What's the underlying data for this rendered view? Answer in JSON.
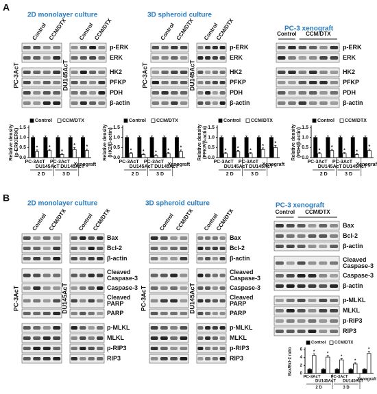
{
  "panel_a": {
    "label": "A",
    "sections": [
      {
        "title": "2D monolayer culture",
        "columns": [
          "Control",
          "CCM/DTX"
        ],
        "cell_lines": [
          "PC-3AcT",
          "DU145AcT"
        ],
        "blocks": [
          [
            "p-ERK",
            "ERK"
          ],
          [
            "HK2",
            "PFKP",
            "PDH",
            "β-actin"
          ]
        ]
      },
      {
        "title": "3D spheroid culture",
        "columns": [
          "Control",
          "CCM/DTX"
        ],
        "cell_lines": [
          "PC-3AcT",
          "DU145AcT"
        ],
        "blocks": [
          [
            "p-ERK",
            "ERK"
          ],
          [
            "HK2",
            "PFKP",
            "PDH",
            "β-actin"
          ]
        ]
      },
      {
        "title": "PC-3 xenograft",
        "columns": [
          "Control",
          "CCM/DTX"
        ],
        "blocks": [
          [
            "p-ERK",
            "ERK"
          ],
          [
            "HK2",
            "PFKP",
            "PDH",
            "β-actin"
          ]
        ]
      }
    ]
  },
  "panel_b": {
    "label": "B",
    "sections": [
      {
        "title": "2D monolayer culture",
        "columns": [
          "Control",
          "CCM/DTX"
        ],
        "cell_lines": [
          "PC-3AcT",
          "DU145AcT"
        ],
        "blocks": [
          [
            "Bax",
            "Bcl-2",
            "β-actin"
          ],
          [
            [
              "Cleaved",
              "Caspase-3"
            ],
            "Caspase-3",
            [
              "Cleaved",
              "PARP"
            ],
            "PARP"
          ],
          [
            "p-MLKL",
            "MLKL",
            "p-RIP3",
            "RIP3"
          ]
        ]
      },
      {
        "title": "3D spheroid culture",
        "columns": [
          "Control",
          "CCM/DTX"
        ],
        "cell_lines": [
          "PC-3AcT",
          "DU145AcT"
        ],
        "blocks": [
          [
            "Bax",
            "Bcl-2",
            "β-actin"
          ],
          [
            [
              "Cleaved",
              "Caspase-3"
            ],
            "Caspase-3",
            [
              "Cleaved",
              "PARP"
            ],
            "PARP"
          ],
          [
            "p-MLKL",
            "MLKL",
            "p-RIP3",
            "RIP3"
          ]
        ]
      },
      {
        "title": "PC-3 xenograft",
        "columns": [
          "Control",
          "CCM/DTX"
        ],
        "blocks": [
          [
            "Bax",
            "Bcl-2",
            "β-actin"
          ],
          [
            [
              "Cleaved",
              "Caspase-3"
            ],
            "Caspase-3",
            "β-actin"
          ],
          [
            "p-MLKL",
            "MLKL",
            "p-RIP3",
            "RIP3"
          ]
        ]
      }
    ]
  },
  "chart_data": [
    {
      "type": "bar",
      "ylabel": [
        "Relative density",
        "(p-ERK/ERK)"
      ],
      "categories": [
        "PC-3AcT",
        "DU145AcT",
        "PC-3AcT",
        "DU145AcT",
        "Xenograft"
      ],
      "groups": [
        "2 D",
        "3 D"
      ],
      "series": [
        {
          "name": "Control",
          "color": "#000000",
          "values": [
            1,
            1,
            1,
            1,
            1
          ],
          "errors": [
            0.08,
            0.08,
            0.08,
            0.08,
            0.08
          ]
        },
        {
          "name": "CCM/DTX",
          "color": "#ffffff",
          "values": [
            0.3,
            0.35,
            0.15,
            0.4,
            0.35
          ],
          "errors": [
            0.08,
            0.06,
            0.05,
            0.1,
            0.08
          ],
          "markers": [
            "*",
            "*",
            "*",
            "*",
            "*"
          ]
        }
      ],
      "ylim": [
        0,
        1.5
      ],
      "yticks": [
        {
          "value": 0,
          "label": "0.0"
        },
        0.5,
        {
          "value": 1,
          "label": "1.0"
        },
        1.5
      ]
    },
    {
      "type": "bar",
      "ylabel": [
        "Relative density",
        "(HK2/β-actin)"
      ],
      "categories": [
        "PC-3AcT",
        "DU145AcT",
        "PC-3AcT",
        "DU145AcT",
        "Xenograft"
      ],
      "groups": [
        "2 D",
        "3 D"
      ],
      "series": [
        {
          "name": "Control",
          "color": "#000000",
          "values": [
            1,
            1,
            1,
            1,
            1
          ],
          "errors": [
            0.08,
            0.08,
            0.08,
            0.08,
            0.08
          ]
        },
        {
          "name": "CCM/DTX",
          "color": "#ffffff",
          "values": [
            0.2,
            0.15,
            0.1,
            0.2,
            0.3
          ],
          "errors": [
            0.05,
            0.05,
            0.04,
            0.05,
            0.08
          ],
          "markers": [
            "*",
            "*",
            "*",
            "*",
            "*"
          ]
        }
      ],
      "ylim": [
        0,
        1.5
      ],
      "yticks": [
        {
          "value": 0,
          "label": "0.0"
        },
        0.5,
        {
          "value": 1,
          "label": "1.0"
        },
        1.5
      ]
    },
    {
      "type": "bar",
      "ylabel": [
        "Relative density",
        "(PFKP/β-actin)"
      ],
      "categories": [
        "PC-3AcT",
        "DU145AcT",
        "PC-3AcT",
        "DU145AcT",
        "Xenograft"
      ],
      "groups": [
        "2 D",
        "3 D"
      ],
      "series": [
        {
          "name": "Control",
          "color": "#000000",
          "values": [
            1,
            1,
            1,
            1,
            1
          ],
          "errors": [
            0.08,
            0.08,
            0.08,
            0.08,
            0.08
          ]
        },
        {
          "name": "CCM/DTX",
          "color": "#ffffff",
          "values": [
            0.2,
            0.3,
            0.2,
            0.4,
            0.5
          ],
          "errors": [
            0.05,
            0.06,
            0.05,
            0.08,
            0.1
          ],
          "markers": [
            "*",
            "*",
            "*",
            "*",
            "*"
          ]
        }
      ],
      "ylim": [
        0,
        1.5
      ],
      "yticks": [
        {
          "value": 0,
          "label": "0.0"
        },
        0.5,
        {
          "value": 1,
          "label": "1.0"
        },
        1.5
      ]
    },
    {
      "type": "bar",
      "ylabel": [
        "Relative density",
        "(PDH/β-actin)"
      ],
      "categories": [
        "PC-3AcT",
        "DU145AcT",
        "PC-3AcT",
        "DU145AcT",
        "Xenograft"
      ],
      "groups": [
        "2 D",
        "3 D"
      ],
      "series": [
        {
          "name": "Control",
          "color": "#000000",
          "values": [
            1,
            1,
            1,
            1,
            1
          ],
          "errors": [
            0.08,
            0.08,
            0.08,
            0.08,
            0.08
          ]
        },
        {
          "name": "CCM/DTX",
          "color": "#ffffff",
          "values": [
            0.2,
            0.35,
            0.2,
            0.15,
            0.35
          ],
          "errors": [
            0.05,
            0.06,
            0.05,
            0.04,
            0.08
          ],
          "markers": [
            "*",
            "*",
            "*",
            "*",
            "*"
          ]
        }
      ],
      "ylim": [
        0,
        1.5
      ],
      "yticks": [
        {
          "value": 0,
          "label": "0.0"
        },
        0.5,
        {
          "value": 1,
          "label": "1.0"
        },
        1.5
      ]
    },
    {
      "type": "bar",
      "ylabel": [
        "Bax/Bcl-2 ratio"
      ],
      "categories": [
        "PC-3AcT",
        "DU145AcT",
        "PC-3AcT",
        "DU145AcT",
        "Xenograft"
      ],
      "groups": [
        "2 D",
        "3 D"
      ],
      "series": [
        {
          "name": "Control",
          "color": "#000000",
          "values": [
            1,
            1,
            1,
            1,
            1
          ],
          "errors": [
            0.2,
            0.2,
            0.2,
            0.2,
            0.2
          ]
        },
        {
          "name": "CCM/DTX",
          "color": "#ffffff",
          "values": [
            4.5,
            4.1,
            3.4,
            2.4,
            5
          ],
          "errors": [
            0.4,
            0.4,
            0.3,
            0.3,
            0.5
          ],
          "markers": [
            "*",
            "*",
            "*",
            "*",
            "*"
          ]
        }
      ],
      "ylim": [
        0,
        6
      ],
      "yticks": [
        0,
        2,
        4,
        6
      ]
    }
  ]
}
